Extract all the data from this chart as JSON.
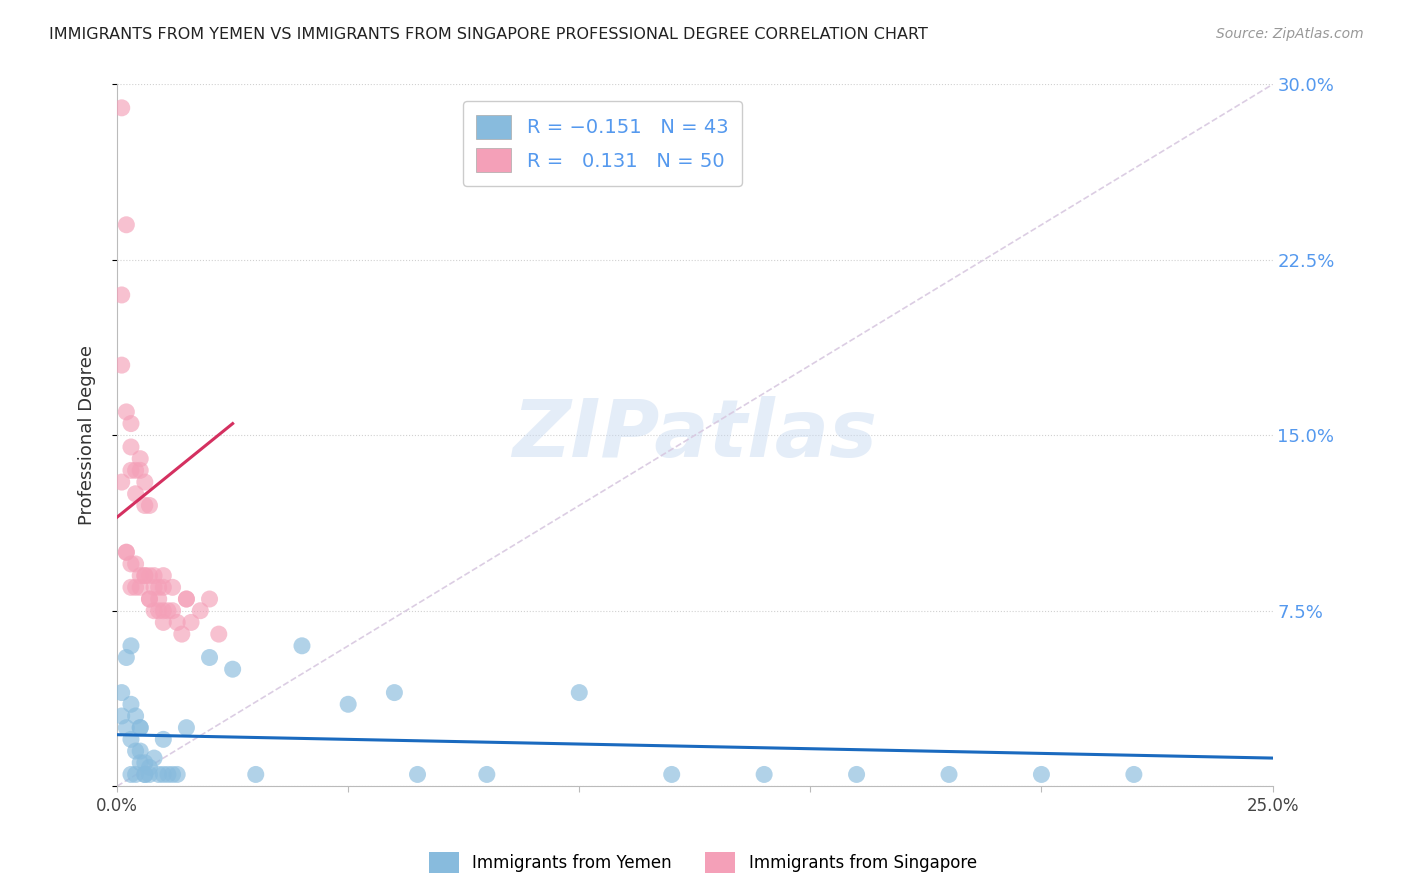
{
  "title": "IMMIGRANTS FROM YEMEN VS IMMIGRANTS FROM SINGAPORE PROFESSIONAL DEGREE CORRELATION CHART",
  "source": "Source: ZipAtlas.com",
  "ylabel": "Professional Degree",
  "xlim": [
    0.0,
    0.25
  ],
  "ylim": [
    0.0,
    0.3
  ],
  "color_yemen": "#88bbdd",
  "color_singapore": "#f4a0b8",
  "color_trendline_yemen": "#1a6abf",
  "color_trendline_singapore": "#d43060",
  "color_diagonal": "#d8c8e0",
  "color_right_axis": "#5599ee",
  "color_grid": "#cccccc",
  "yemen_x": [
    0.001,
    0.001,
    0.002,
    0.002,
    0.003,
    0.003,
    0.003,
    0.004,
    0.004,
    0.005,
    0.005,
    0.005,
    0.006,
    0.006,
    0.007,
    0.008,
    0.009,
    0.01,
    0.01,
    0.011,
    0.012,
    0.013,
    0.015,
    0.02,
    0.025,
    0.03,
    0.04,
    0.05,
    0.06,
    0.065,
    0.08,
    0.1,
    0.12,
    0.14,
    0.16,
    0.18,
    0.2,
    0.22,
    0.005,
    0.003,
    0.004,
    0.006,
    0.007
  ],
  "yemen_y": [
    0.04,
    0.03,
    0.055,
    0.025,
    0.06,
    0.035,
    0.02,
    0.03,
    0.015,
    0.025,
    0.015,
    0.01,
    0.01,
    0.005,
    0.008,
    0.012,
    0.005,
    0.005,
    0.02,
    0.005,
    0.005,
    0.005,
    0.025,
    0.055,
    0.05,
    0.005,
    0.06,
    0.035,
    0.04,
    0.005,
    0.005,
    0.04,
    0.005,
    0.005,
    0.005,
    0.005,
    0.005,
    0.005,
    0.025,
    0.005,
    0.005,
    0.005,
    0.005
  ],
  "singapore_x": [
    0.001,
    0.001,
    0.001,
    0.001,
    0.002,
    0.002,
    0.002,
    0.003,
    0.003,
    0.003,
    0.003,
    0.004,
    0.004,
    0.004,
    0.005,
    0.005,
    0.005,
    0.006,
    0.006,
    0.006,
    0.007,
    0.007,
    0.007,
    0.008,
    0.008,
    0.009,
    0.009,
    0.01,
    0.01,
    0.01,
    0.011,
    0.012,
    0.013,
    0.014,
    0.015,
    0.016,
    0.018,
    0.02,
    0.022,
    0.002,
    0.003,
    0.004,
    0.005,
    0.006,
    0.007,
    0.008,
    0.009,
    0.01,
    0.012,
    0.015
  ],
  "singapore_y": [
    0.29,
    0.21,
    0.18,
    0.13,
    0.24,
    0.16,
    0.1,
    0.155,
    0.145,
    0.135,
    0.095,
    0.135,
    0.125,
    0.085,
    0.14,
    0.135,
    0.09,
    0.13,
    0.12,
    0.09,
    0.12,
    0.09,
    0.08,
    0.09,
    0.075,
    0.085,
    0.075,
    0.09,
    0.075,
    0.07,
    0.075,
    0.085,
    0.07,
    0.065,
    0.08,
    0.07,
    0.075,
    0.08,
    0.065,
    0.1,
    0.085,
    0.095,
    0.085,
    0.09,
    0.08,
    0.085,
    0.08,
    0.085,
    0.075,
    0.08
  ],
  "singapore_trendline_x0": 0.0,
  "singapore_trendline_y0": 0.115,
  "singapore_trendline_x1": 0.025,
  "singapore_trendline_y1": 0.155,
  "yemen_trendline_x0": 0.0,
  "yemen_trendline_y0": 0.022,
  "yemen_trendline_x1": 0.25,
  "yemen_trendline_y1": 0.012
}
